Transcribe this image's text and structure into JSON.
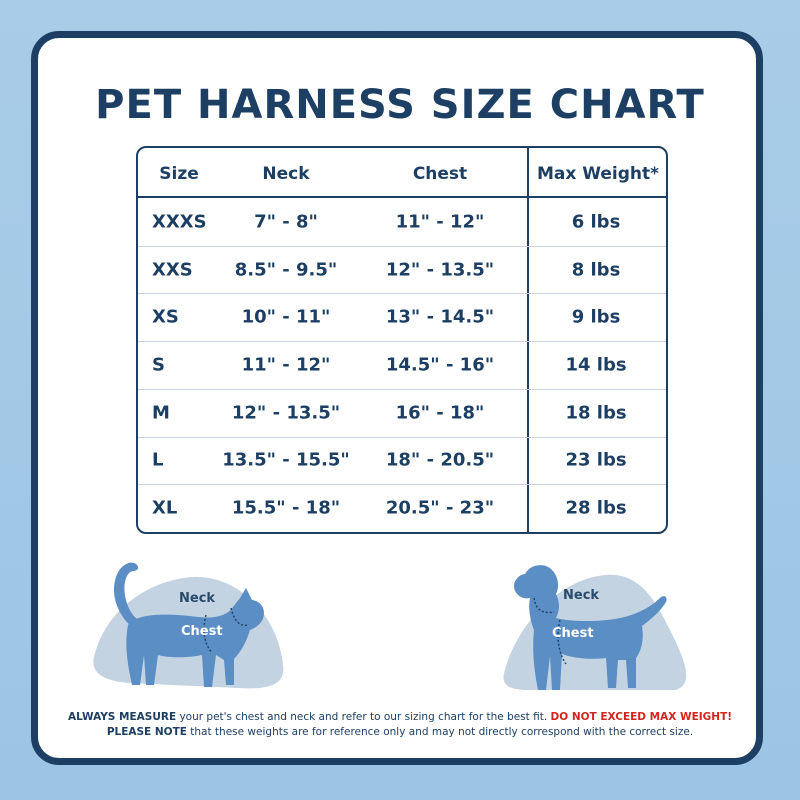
{
  "title": "PET HARNESS SIZE CHART",
  "table": {
    "headers": {
      "size": "Size",
      "neck": "Neck",
      "chest": "Chest",
      "weight": "Max Weight*"
    },
    "rows": [
      {
        "size": "XXXS",
        "neck": "7\" - 8\"",
        "chest": "11\" - 12\"",
        "weight": "6 lbs"
      },
      {
        "size": "XXS",
        "neck": "8.5\" - 9.5\"",
        "chest": "12\" - 13.5\"",
        "weight": "8 lbs"
      },
      {
        "size": "XS",
        "neck": "10\" - 11\"",
        "chest": "13\" - 14.5\"",
        "weight": "9 lbs"
      },
      {
        "size": "S",
        "neck": "11\" - 12\"",
        "chest": "14.5\" - 16\"",
        "weight": "14 lbs"
      },
      {
        "size": "M",
        "neck": "12\" - 13.5\"",
        "chest": "16\" - 18\"",
        "weight": "18 lbs"
      },
      {
        "size": "L",
        "neck": "13.5\" - 15.5\"",
        "chest": "18\" - 20.5\"",
        "weight": "23 lbs"
      },
      {
        "size": "XL",
        "neck": "15.5\" - 18\"",
        "chest": "20.5\" - 23\"",
        "weight": "28 lbs"
      }
    ]
  },
  "illustrations": {
    "cat": {
      "icon": "cat-silhouette-icon",
      "neck_label": "Neck",
      "chest_label": "Chest"
    },
    "dog": {
      "icon": "dog-silhouette-icon",
      "neck_label": "Neck",
      "chest_label": "Chest"
    }
  },
  "footnote": {
    "line1_bold": "ALWAYS MEASURE",
    "line1_text": " your pet's chest and neck and refer  to our sizing chart for the best fit. ",
    "line1_warning": "DO NOT EXCEED MAX WEIGHT!",
    "line2_bold": "PLEASE NOTE",
    "line2_text": " that these weights are for reference only and may not directly correspond with the correct size."
  },
  "colors": {
    "background": "#a9cde8",
    "navy": "#1d3f63",
    "pet_blue": "#5b8ec4",
    "blob": "#c3d3e1",
    "warning": "#d4241f"
  }
}
